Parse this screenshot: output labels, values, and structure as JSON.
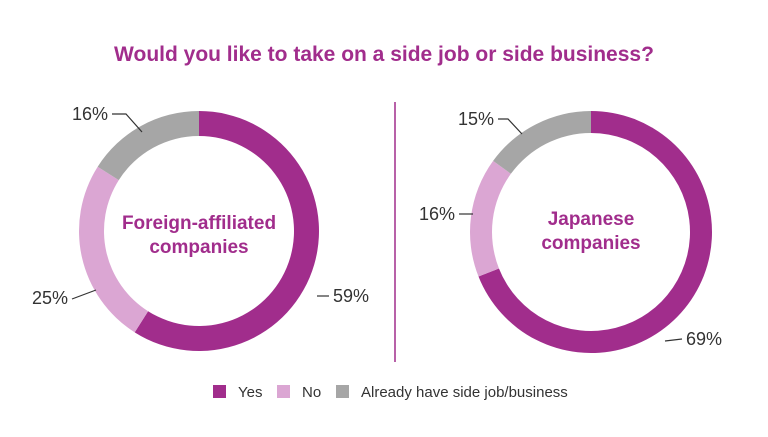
{
  "chart_data": {
    "type": "pie",
    "title": "Would you like to take on a side job or side business?",
    "legend": {
      "placement": "bottom",
      "entries": [
        "Yes",
        "No",
        "Already have side job/business"
      ]
    },
    "colors": {
      "Yes": "#a12d8c",
      "No": "#dba6d3",
      "Already have side job/business": "#a6a6a6",
      "title": "#a12d8c",
      "divider": "#a12d8c"
    },
    "charts": [
      {
        "center_label": [
          "Foreign-affiliated",
          "companies"
        ],
        "categories": [
          "Yes",
          "No",
          "Already have side job/business"
        ],
        "values": [
          59,
          25,
          16
        ],
        "value_labels": [
          "59%",
          "25%",
          "16%"
        ]
      },
      {
        "center_label": [
          "Japanese",
          "companies"
        ],
        "categories": [
          "Yes",
          "No",
          "Already have side job/business"
        ],
        "values": [
          69,
          16,
          15
        ],
        "value_labels": [
          "69%",
          "16%",
          "15%"
        ]
      }
    ]
  }
}
